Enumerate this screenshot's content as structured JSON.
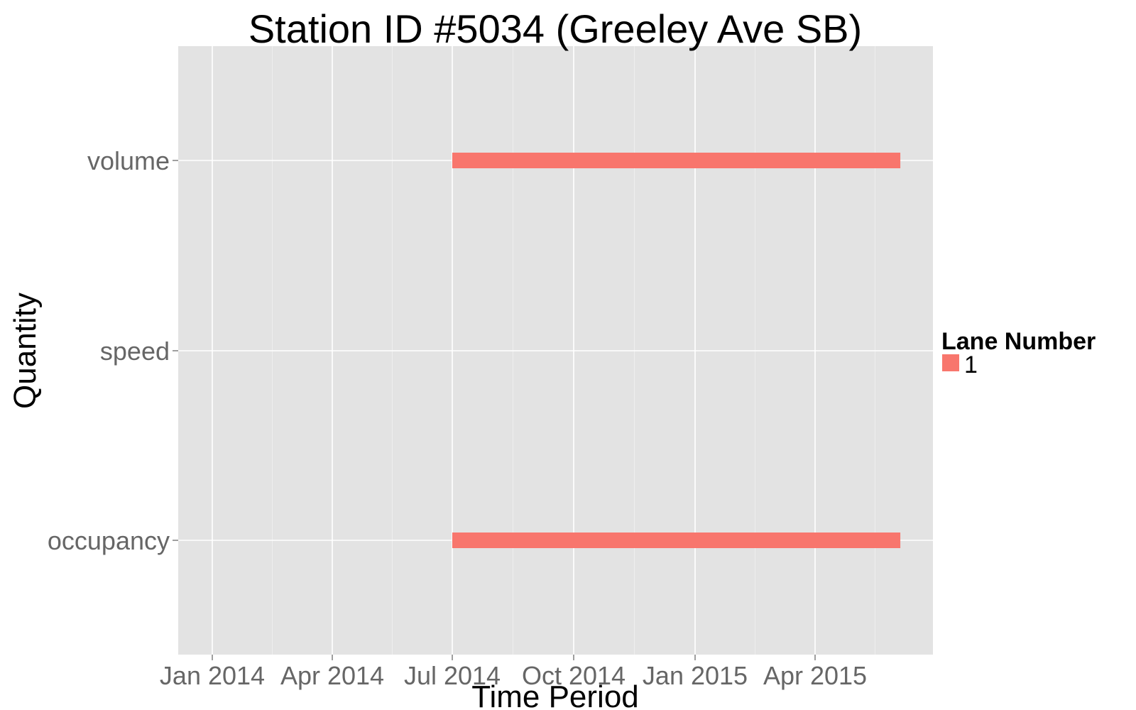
{
  "chart_data": {
    "type": "bar",
    "title": "Station ID #5034 (Greeley Ave SB)",
    "xlabel": "Time Period",
    "ylabel": "Quantity",
    "x_tick_labels": [
      "Jan 2014",
      "Apr 2014",
      "Jul 2014",
      "Oct 2014",
      "Jan 2015",
      "Apr 2015"
    ],
    "categories": [
      "occupancy",
      "speed",
      "volume"
    ],
    "legend": {
      "title": "Lane Number",
      "position": "right"
    },
    "series": [
      {
        "name": "1",
        "color": "#f8766d",
        "segments": [
          {
            "category": "volume",
            "start": "2014-07-01",
            "end": "2015-06-05"
          },
          {
            "category": "occupancy",
            "start": "2014-07-01",
            "end": "2015-06-05"
          }
        ]
      }
    ],
    "grid": true
  }
}
